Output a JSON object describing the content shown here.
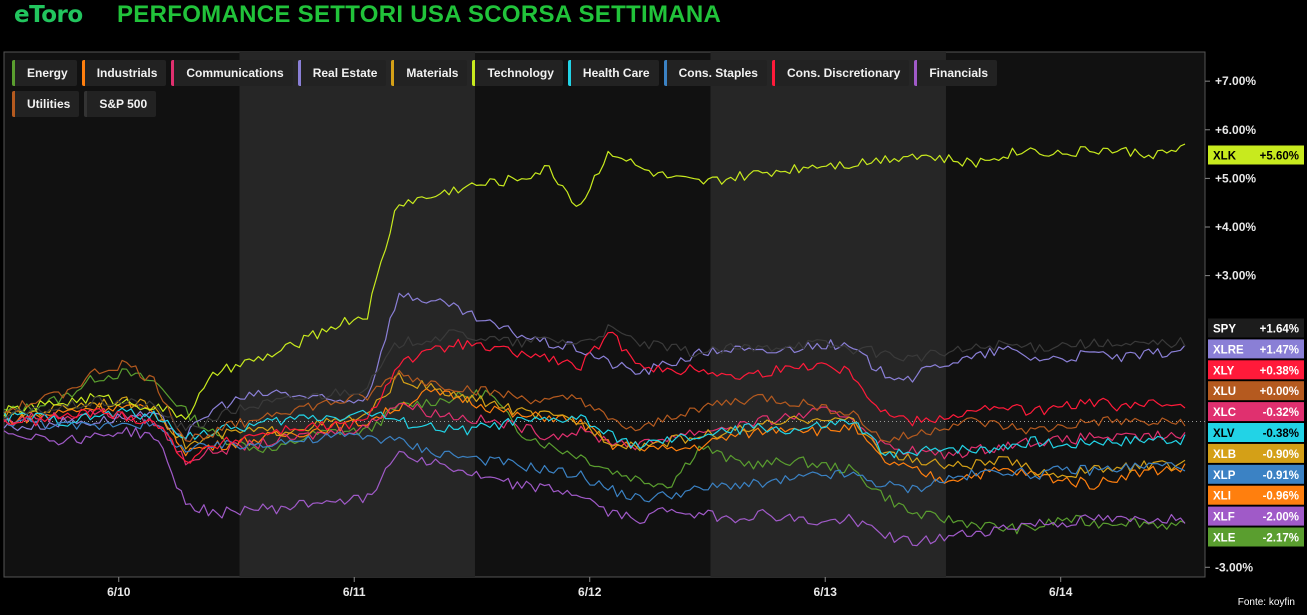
{
  "header": {
    "logo": "eToro",
    "title": "PERFOMANCE SETTORI USA SCORSA SETTIMANA"
  },
  "source": "Fonte: koyfin",
  "chart_data": {
    "type": "line",
    "x_ticks": [
      "6/10",
      "6/11",
      "6/12",
      "6/13",
      "6/14"
    ],
    "y_ticks": [
      "+7.00%",
      "+6.00%",
      "+5.00%",
      "+4.00%",
      "+3.00%",
      "-3.00%"
    ],
    "y_unit": "%",
    "ylim": [
      -3.2,
      7.6
    ],
    "grid": false,
    "legend_position": "top-left",
    "series": [
      {
        "name": "Energy",
        "ticker": "XLE",
        "final_label": "-2.17%",
        "color": "#5a9e2f",
        "values": [
          0.2,
          0.3,
          0.5,
          0.9,
          1.0,
          0.8,
          0.2,
          -0.3,
          -0.5,
          -0.6,
          -0.3,
          -0.2,
          -0.2,
          0.3,
          0.4,
          0.5,
          0.6,
          -0.2,
          -0.5,
          -0.7,
          -1.0,
          -1.2,
          -1.3,
          -0.5,
          -0.8,
          -0.9,
          -0.8,
          -0.9,
          -1.0,
          -1.5,
          -1.9,
          -2.0,
          -2.1,
          -2.2,
          -2.2,
          -2.0,
          -2.1,
          -2.05,
          -2.1,
          -2.17
        ]
      },
      {
        "name": "Industrials",
        "ticker": "XLI",
        "final_label": "-0.96%",
        "color": "#ff7f0e",
        "values": [
          0.0,
          0.1,
          0.2,
          0.3,
          0.3,
          0.2,
          -0.6,
          -0.5,
          -0.4,
          -0.3,
          -0.2,
          -0.1,
          0.0,
          0.3,
          0.6,
          0.5,
          0.3,
          0.1,
          0.1,
          0.0,
          -0.5,
          -0.5,
          -0.6,
          -0.5,
          -0.3,
          -0.2,
          -0.1,
          -0.2,
          -0.1,
          -0.8,
          -1.0,
          -1.2,
          -1.1,
          -1.0,
          -1.1,
          -1.2,
          -1.3,
          -1.1,
          -1.0,
          -0.96
        ]
      },
      {
        "name": "Communications",
        "ticker": "XLC",
        "final_label": "-0.32%",
        "color": "#e0306f",
        "values": [
          0.0,
          0.1,
          0.1,
          0.2,
          0.1,
          0.0,
          -0.8,
          -0.6,
          -0.5,
          -0.4,
          -0.3,
          -0.2,
          -0.1,
          0.4,
          0.2,
          0.1,
          0.0,
          -0.1,
          -0.3,
          -0.2,
          -0.4,
          -0.5,
          -0.3,
          -0.2,
          -0.1,
          0.0,
          0.1,
          0.2,
          0.1,
          -0.5,
          -0.6,
          -0.7,
          -0.6,
          -0.5,
          -0.4,
          -0.4,
          -0.3,
          -0.35,
          -0.3,
          -0.32
        ]
      },
      {
        "name": "Real Estate",
        "ticker": "XLRE",
        "final_label": "+1.47%",
        "color": "#8a7fd6",
        "values": [
          -0.1,
          -0.1,
          0.0,
          0.0,
          0.1,
          0.1,
          -0.3,
          0.3,
          0.5,
          0.6,
          0.5,
          0.4,
          0.5,
          2.6,
          2.5,
          2.3,
          2.0,
          1.8,
          1.6,
          1.5,
          1.2,
          1.0,
          1.2,
          1.4,
          1.5,
          1.4,
          1.5,
          1.6,
          1.5,
          1.0,
          0.9,
          1.2,
          1.3,
          1.5,
          1.3,
          1.3,
          1.4,
          1.3,
          1.4,
          1.47
        ]
      },
      {
        "name": "Materials",
        "ticker": "XLB",
        "final_label": "-0.90%",
        "color": "#d4a017",
        "values": [
          0.1,
          0.2,
          0.3,
          0.4,
          0.4,
          0.3,
          -0.5,
          -0.3,
          -0.2,
          -0.2,
          -0.1,
          0.0,
          0.1,
          0.9,
          0.7,
          0.5,
          0.4,
          0.2,
          0.1,
          0.0,
          -0.4,
          -0.5,
          -0.4,
          -0.3,
          -0.2,
          -0.1,
          0.0,
          0.1,
          0.0,
          -0.6,
          -0.8,
          -0.9,
          -0.9,
          -0.8,
          -1.0,
          -1.1,
          -1.0,
          -0.95,
          -0.9,
          -0.9
        ]
      },
      {
        "name": "Technology",
        "ticker": "XLK",
        "final_label": "+5.60%",
        "color": "#c8ea1e",
        "values": [
          0.2,
          0.3,
          0.4,
          0.5,
          0.4,
          0.3,
          0.1,
          1.0,
          1.2,
          1.4,
          1.7,
          2.0,
          2.2,
          4.5,
          4.6,
          4.8,
          4.9,
          5.0,
          5.2,
          4.4,
          5.6,
          5.2,
          5.0,
          4.9,
          5.0,
          5.1,
          5.2,
          5.3,
          5.3,
          5.4,
          5.5,
          5.4,
          5.3,
          5.5,
          5.6,
          5.5,
          5.6,
          5.55,
          5.5,
          5.6
        ]
      },
      {
        "name": "Health Care",
        "ticker": "XLV",
        "final_label": "-0.38%",
        "color": "#22d3e6",
        "values": [
          0.1,
          0.1,
          0.0,
          0.1,
          0.2,
          0.1,
          -0.3,
          -0.2,
          -0.1,
          0.0,
          0.1,
          0.1,
          0.2,
          0.0,
          -0.1,
          -0.2,
          -0.1,
          0.0,
          0.0,
          0.1,
          -0.3,
          -0.5,
          -0.4,
          -0.3,
          -0.2,
          -0.1,
          -0.2,
          -0.1,
          0.0,
          -0.6,
          -0.7,
          -0.5,
          -0.6,
          -0.5,
          -0.4,
          -0.5,
          -0.4,
          -0.4,
          -0.35,
          -0.38
        ]
      },
      {
        "name": "Cons. Staples",
        "ticker": "XLP",
        "final_label": "-0.91%",
        "color": "#3b82c4",
        "values": [
          0.0,
          0.0,
          -0.1,
          -0.1,
          0.0,
          -0.1,
          -0.6,
          -0.5,
          -0.5,
          -0.4,
          -0.4,
          -0.3,
          -0.3,
          -0.4,
          -0.6,
          -0.7,
          -0.8,
          -0.9,
          -1.0,
          -1.1,
          -1.4,
          -1.6,
          -1.5,
          -1.4,
          -1.3,
          -1.3,
          -1.2,
          -1.1,
          -1.1,
          -1.3,
          -1.4,
          -1.2,
          -1.1,
          -1.0,
          -1.1,
          -1.0,
          -1.0,
          -0.95,
          -0.9,
          -0.91
        ]
      },
      {
        "name": "Cons. Discretionary",
        "ticker": "XLY",
        "final_label": "+0.38%",
        "color": "#ff1a3a",
        "values": [
          0.0,
          0.0,
          0.1,
          0.2,
          0.1,
          0.0,
          -0.8,
          -0.5,
          -0.3,
          -0.2,
          -0.1,
          -0.1,
          0.0,
          1.2,
          1.4,
          1.6,
          1.5,
          1.4,
          1.3,
          1.1,
          1.8,
          1.2,
          1.0,
          1.1,
          0.9,
          1.0,
          1.1,
          1.2,
          1.0,
          0.2,
          0.0,
          0.1,
          0.2,
          0.3,
          0.2,
          0.3,
          0.4,
          0.3,
          0.35,
          0.38
        ]
      },
      {
        "name": "Financials",
        "ticker": "XLF",
        "final_label": "-2.00%",
        "color": "#a05ac8",
        "values": [
          -0.2,
          -0.3,
          -0.4,
          -0.3,
          -0.2,
          -0.3,
          -1.7,
          -1.9,
          -1.8,
          -1.8,
          -1.7,
          -1.6,
          -1.6,
          -0.6,
          -0.8,
          -1.0,
          -1.2,
          -1.3,
          -1.4,
          -1.5,
          -1.9,
          -2.0,
          -1.8,
          -1.9,
          -2.0,
          -1.9,
          -2.0,
          -2.1,
          -2.0,
          -2.3,
          -2.5,
          -2.4,
          -2.3,
          -2.2,
          -2.1,
          -2.1,
          -2.0,
          -2.05,
          -2.0,
          -2.0
        ]
      },
      {
        "name": "Utilities",
        "ticker": "XLU",
        "final_label": "+0.00%",
        "color": "#b55a1f",
        "values": [
          0.2,
          0.4,
          0.6,
          1.0,
          1.2,
          0.8,
          -0.4,
          -0.2,
          0.0,
          0.2,
          0.3,
          0.4,
          0.5,
          1.0,
          0.8,
          0.7,
          0.6,
          0.5,
          0.4,
          0.5,
          0.0,
          -0.2,
          0.1,
          0.3,
          0.4,
          0.5,
          0.4,
          0.3,
          0.2,
          -0.4,
          -0.3,
          -0.1,
          0.0,
          -0.1,
          -0.2,
          -0.1,
          0.0,
          0.0,
          -0.05,
          0.0
        ]
      },
      {
        "name": "S&P 500",
        "ticker": "SPY",
        "final_label": "+1.64%",
        "color": "#2a2a2a",
        "values": [
          0.1,
          0.2,
          0.3,
          0.4,
          0.4,
          0.3,
          -0.2,
          0.1,
          0.3,
          0.4,
          0.5,
          0.6,
          0.7,
          1.6,
          1.7,
          1.8,
          1.7,
          1.6,
          1.7,
          1.6,
          1.9,
          1.6,
          1.5,
          1.4,
          1.5,
          1.5,
          1.6,
          1.6,
          1.5,
          1.4,
          1.3,
          1.4,
          1.5,
          1.6,
          1.5,
          1.6,
          1.6,
          1.55,
          1.6,
          1.64
        ]
      }
    ],
    "end_labels_order": [
      "XLK",
      "SPY",
      "XLRE",
      "XLY",
      "XLU",
      "XLC",
      "XLV",
      "XLB",
      "XLP",
      "XLI",
      "XLF",
      "XLE"
    ]
  }
}
